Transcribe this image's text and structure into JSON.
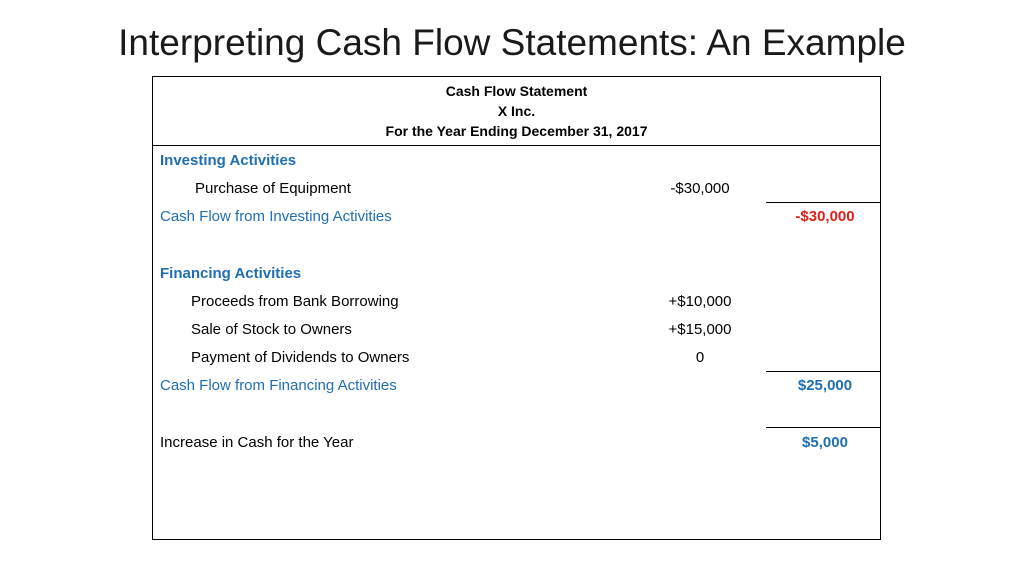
{
  "slide": {
    "title": "Interpreting Cash Flow Statements: An Example"
  },
  "statement": {
    "header": {
      "line1": "Cash Flow Statement",
      "line2": "X Inc.",
      "line3": "For the Year Ending December 31, 2017"
    },
    "investing": {
      "heading": "Investing Activities",
      "items": [
        {
          "label": "Purchase of Equipment",
          "amount": "-$30,000"
        }
      ],
      "total_label": "Cash Flow from Investing Activities",
      "total_value": "-$30,000"
    },
    "financing": {
      "heading": "Financing Activities",
      "items": [
        {
          "label": "Proceeds from Bank Borrowing",
          "amount": "+$10,000"
        },
        {
          "label": "Sale of Stock to Owners",
          "amount": "+$15,000"
        },
        {
          "label": "Payment of Dividends to Owners",
          "amount": "0"
        }
      ],
      "total_label": "Cash Flow from Financing Activities",
      "total_value": "$25,000"
    },
    "increase": {
      "label": "Increase in Cash for the Year",
      "value": "$5,000"
    }
  },
  "colors": {
    "heading_blue": "#1f6fb2",
    "negative_red": "#e0201b"
  }
}
